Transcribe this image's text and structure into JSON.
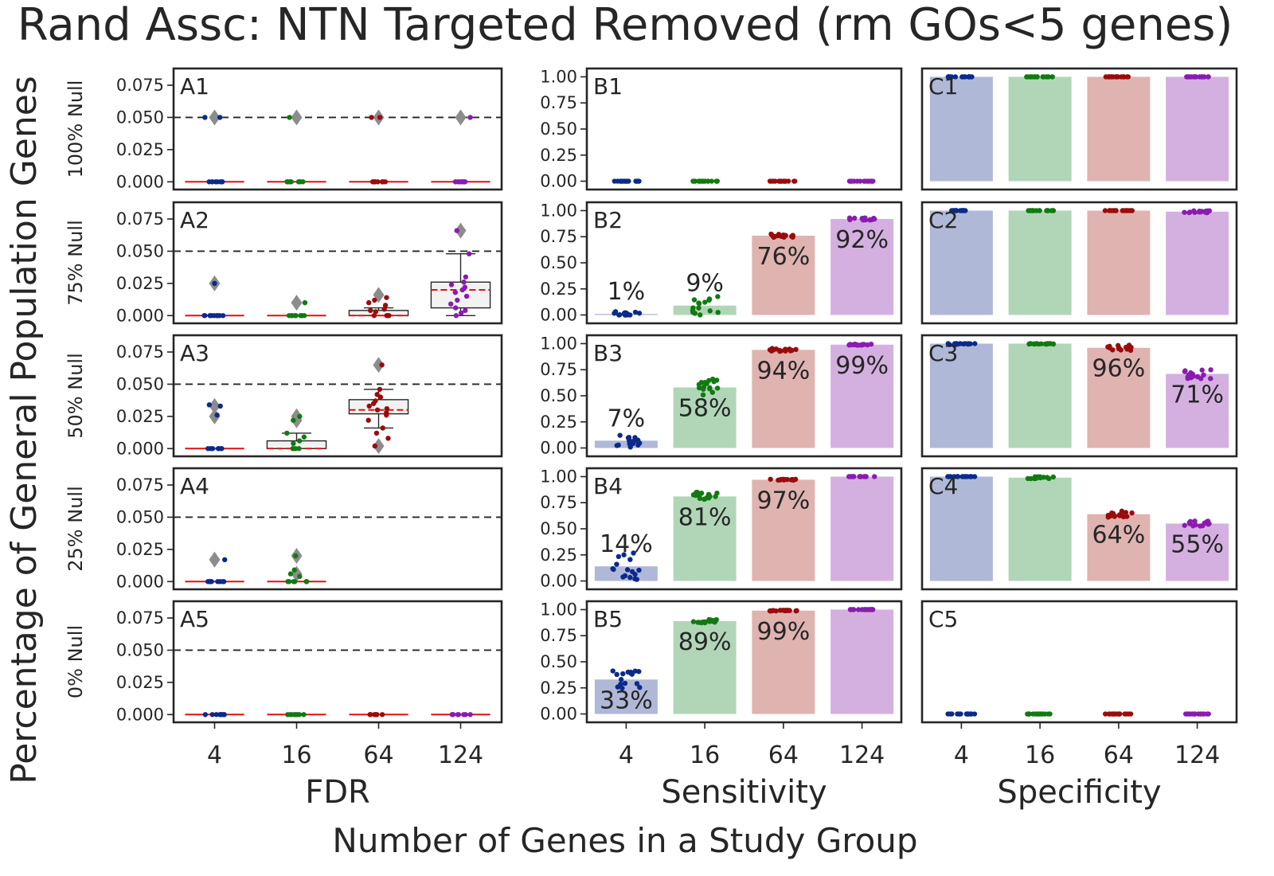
{
  "title": "Rand Assc: NTN Targeted Removed (rm GOs<5 genes)",
  "ylabel": "Percentage of General Population Genes",
  "xlabel": "Number of Genes in a Study Group",
  "colors": {
    "4": "#0b2a8a",
    "16": "#117a11",
    "64": "#9a0c0c",
    "124": "#8a1bb0",
    "bar_4": "#b0b8d8",
    "bar_16": "#b1d6b7",
    "bar_64": "#dfb3b0",
    "bar_124": "#d4b0e0",
    "median": "#e01010",
    "outlier": "#8c8c8c"
  },
  "chart_data": {
    "type": "box-and-bar grid",
    "categories": [
      "4",
      "16",
      "64",
      "124"
    ],
    "rows": [
      "100% Null",
      "75% Null",
      "50% Null",
      "25% Null",
      "0% Null"
    ],
    "columns": [
      {
        "id": "A",
        "xlabel": "FDR",
        "type": "box",
        "ylim": [
          -0.006,
          0.088
        ],
        "yticks": [
          "0.000",
          "0.025",
          "0.050",
          "0.075"
        ],
        "threshold": 0.05,
        "panels": [
          {
            "label": "A1",
            "groups": [
              {
                "median": 0,
                "q1": 0,
                "q3": 0,
                "wlo": 0,
                "whi": 0,
                "outliers": [
                  0.05
                ],
                "points": [
                  0,
                  0,
                  0,
                  0,
                  0,
                  0,
                  0,
                  0,
                  0.05,
                  0.05
                ]
              },
              {
                "median": 0,
                "q1": 0,
                "q3": 0,
                "wlo": 0,
                "whi": 0,
                "outliers": [
                  0.05
                ],
                "points": [
                  0,
                  0,
                  0,
                  0,
                  0,
                  0,
                  0,
                  0,
                  0,
                  0.05
                ]
              },
              {
                "median": 0,
                "q1": 0,
                "q3": 0,
                "wlo": 0,
                "whi": 0,
                "outliers": [
                  0.05
                ],
                "points": [
                  0,
                  0,
                  0,
                  0,
                  0,
                  0,
                  0,
                  0,
                  0.05,
                  0.05
                ]
              },
              {
                "median": 0,
                "q1": 0,
                "q3": 0,
                "wlo": 0,
                "whi": 0,
                "outliers": [
                  0.05
                ],
                "points": [
                  0,
                  0,
                  0,
                  0,
                  0,
                  0,
                  0,
                  0,
                  0,
                  0.05
                ]
              }
            ]
          },
          {
            "label": "A2",
            "groups": [
              {
                "median": 0,
                "q1": 0,
                "q3": 0,
                "wlo": 0,
                "whi": 0,
                "outliers": [
                  0.025
                ],
                "points": [
                  0,
                  0,
                  0,
                  0,
                  0,
                  0,
                  0,
                  0,
                  0,
                  0.025
                ]
              },
              {
                "median": 0,
                "q1": 0,
                "q3": 0,
                "wlo": 0,
                "whi": 0,
                "outliers": [
                  0.01
                ],
                "points": [
                  0,
                  0,
                  0,
                  0,
                  0,
                  0,
                  0,
                  0,
                  0,
                  0.01
                ]
              },
              {
                "median": 0,
                "q1": 0,
                "q3": 0.004,
                "wlo": 0,
                "whi": 0.006,
                "outliers": [
                  0.016
                ],
                "points": [
                  0,
                  0,
                  0,
                  0,
                  0.003,
                  0.004,
                  0.005,
                  0.008,
                  0.01,
                  0.012,
                  0.014
                ]
              },
              {
                "median": 0.02,
                "q1": 0.006,
                "q3": 0.026,
                "wlo": 0,
                "whi": 0.048,
                "outliers": [
                  0.066
                ],
                "points": [
                  0,
                  0.002,
                  0.004,
                  0.006,
                  0.009,
                  0.012,
                  0.015,
                  0.018,
                  0.02,
                  0.022,
                  0.024,
                  0.026,
                  0.03,
                  0.048,
                  0.066
                ]
              }
            ]
          },
          {
            "label": "A3",
            "groups": [
              {
                "median": 0,
                "q1": 0,
                "q3": 0,
                "wlo": 0,
                "whi": 0,
                "outliers": [
                  0.025,
                  0.033
                ],
                "points": [
                  0,
                  0,
                  0,
                  0,
                  0,
                  0,
                  0,
                  0.026,
                  0.033,
                  0.034
                ]
              },
              {
                "median": 0,
                "q1": 0,
                "q3": 0.006,
                "wlo": 0,
                "whi": 0.012,
                "outliers": [
                  0.022,
                  0.025
                ],
                "points": [
                  0,
                  0,
                  0,
                  0,
                  0.004,
                  0.006,
                  0.009,
                  0.012,
                  0.022,
                  0.025
                ]
              },
              {
                "median": 0.03,
                "q1": 0.027,
                "q3": 0.038,
                "wlo": 0.016,
                "whi": 0.046,
                "outliers": [
                  0.002,
                  0.065
                ],
                "points": [
                  0.002,
                  0.008,
                  0.012,
                  0.016,
                  0.022,
                  0.026,
                  0.028,
                  0.03,
                  0.031,
                  0.033,
                  0.035,
                  0.037,
                  0.04,
                  0.042,
                  0.046,
                  0.065
                ]
              },
              null
            ]
          },
          {
            "label": "A4",
            "groups": [
              {
                "median": 0,
                "q1": 0,
                "q3": 0,
                "wlo": 0,
                "whi": 0,
                "outliers": [
                  0.017
                ],
                "points": [
                  0,
                  0,
                  0,
                  0,
                  0,
                  0,
                  0,
                  0,
                  0,
                  0.017
                ]
              },
              {
                "median": 0,
                "q1": 0,
                "q3": 0,
                "wlo": 0,
                "whi": 0,
                "outliers": [
                  0.006,
                  0.02
                ],
                "points": [
                  0,
                  0,
                  0,
                  0,
                  0,
                  0,
                  0,
                  0.004,
                  0.006,
                  0.009,
                  0.02
                ]
              },
              null,
              null
            ]
          },
          {
            "label": "A5",
            "groups": [
              {
                "median": 0,
                "q1": 0,
                "q3": 0,
                "wlo": 0,
                "whi": 0,
                "outliers": [],
                "points": [
                  0,
                  0,
                  0,
                  0,
                  0,
                  0,
                  0,
                  0
                ]
              },
              {
                "median": 0,
                "q1": 0,
                "q3": 0,
                "wlo": 0,
                "whi": 0,
                "outliers": [],
                "points": [
                  0,
                  0,
                  0,
                  0,
                  0,
                  0,
                  0,
                  0
                ]
              },
              {
                "median": 0,
                "q1": 0,
                "q3": 0,
                "wlo": 0,
                "whi": 0,
                "outliers": [],
                "points": [
                  0,
                  0,
                  0,
                  0,
                  0,
                  0,
                  0,
                  0
                ]
              },
              {
                "median": 0,
                "q1": 0,
                "q3": 0,
                "wlo": 0,
                "whi": 0,
                "outliers": [],
                "points": [
                  0,
                  0,
                  0,
                  0,
                  0,
                  0,
                  0,
                  0
                ]
              }
            ]
          }
        ]
      },
      {
        "id": "B",
        "xlabel": "Sensitivity",
        "type": "bar",
        "ylim": [
          -0.08,
          1.08
        ],
        "yticks": [
          "0.00",
          "0.25",
          "0.50",
          "0.75",
          "1.00"
        ],
        "panels": [
          {
            "label": "B1",
            "values": [
              0,
              0,
              0,
              0
            ],
            "labels": [
              "",
              "",
              "",
              ""
            ],
            "spread": [
              0,
              0,
              0,
              0
            ]
          },
          {
            "label": "B2",
            "values": [
              0.01,
              0.09,
              0.76,
              0.92
            ],
            "labels": [
              "1%",
              "9%",
              "76%",
              "92%"
            ],
            "spread": [
              0.05,
              0.19,
              0.04,
              0.02
            ]
          },
          {
            "label": "B3",
            "values": [
              0.07,
              0.58,
              0.94,
              0.99
            ],
            "labels": [
              "7%",
              "58%",
              "94%",
              "99%"
            ],
            "spread": [
              0.13,
              0.18,
              0.03,
              0.01
            ]
          },
          {
            "label": "B4",
            "values": [
              0.14,
              0.81,
              0.97,
              1.0
            ],
            "labels": [
              "14%",
              "81%",
              "97%",
              ""
            ],
            "spread": [
              0.27,
              0.08,
              0.01,
              0
            ]
          },
          {
            "label": "B5",
            "values": [
              0.33,
              0.89,
              0.99,
              1.0
            ],
            "labels": [
              "33%",
              "89%",
              "99%",
              ""
            ],
            "spread": [
              0.18,
              0.04,
              0.01,
              0
            ]
          }
        ]
      },
      {
        "id": "C",
        "xlabel": "Specificity",
        "type": "bar",
        "ylim": [
          -0.08,
          1.08
        ],
        "yticks": [],
        "panels": [
          {
            "label": "C1",
            "values": [
              1.0,
              1.0,
              1.0,
              1.0
            ],
            "labels": [
              "",
              "",
              "",
              ""
            ],
            "spread": [
              0,
              0,
              0,
              0
            ]
          },
          {
            "label": "C2",
            "values": [
              1.0,
              1.0,
              1.0,
              0.99
            ],
            "labels": [
              "",
              "",
              "",
              ""
            ],
            "spread": [
              0,
              0,
              0,
              0.02
            ]
          },
          {
            "label": "C3",
            "values": [
              1.0,
              1.0,
              0.96,
              0.71
            ],
            "labels": [
              "",
              "",
              "96%",
              "71%"
            ],
            "spread": [
              0.02,
              0.01,
              0.05,
              0.09
            ]
          },
          {
            "label": "C4",
            "values": [
              1.0,
              0.99,
              0.64,
              0.55
            ],
            "labels": [
              "",
              "",
              "64%",
              "55%"
            ],
            "spread": [
              0,
              0.02,
              0.06,
              0.06
            ]
          },
          {
            "label": "C5",
            "values": [
              0,
              0,
              0,
              0
            ],
            "labels": [
              "",
              "",
              "",
              ""
            ],
            "spread": [
              0,
              0,
              0,
              0
            ],
            "empty": true
          }
        ]
      }
    ]
  }
}
